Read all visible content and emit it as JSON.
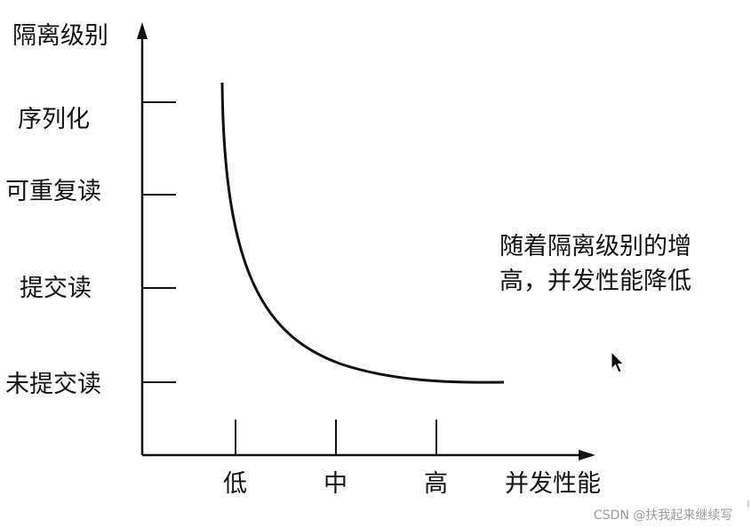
{
  "diagram": {
    "y_axis_title": "隔离级别",
    "x_axis_title": "并发性能",
    "y_levels": [
      "序列化",
      "可重复读",
      "提交读",
      "未提交读"
    ],
    "x_levels": [
      "低",
      "中",
      "高"
    ],
    "annotation": {
      "line1": "随着隔离级别的增",
      "line2": "高，并发性能降低"
    }
  },
  "watermark": "CSDN @扶我起来继续写",
  "colors": {
    "ink": "#111111",
    "watermark": "#9a9a9a"
  },
  "icons": {
    "cursor": "mouse-pointer-icon"
  }
}
